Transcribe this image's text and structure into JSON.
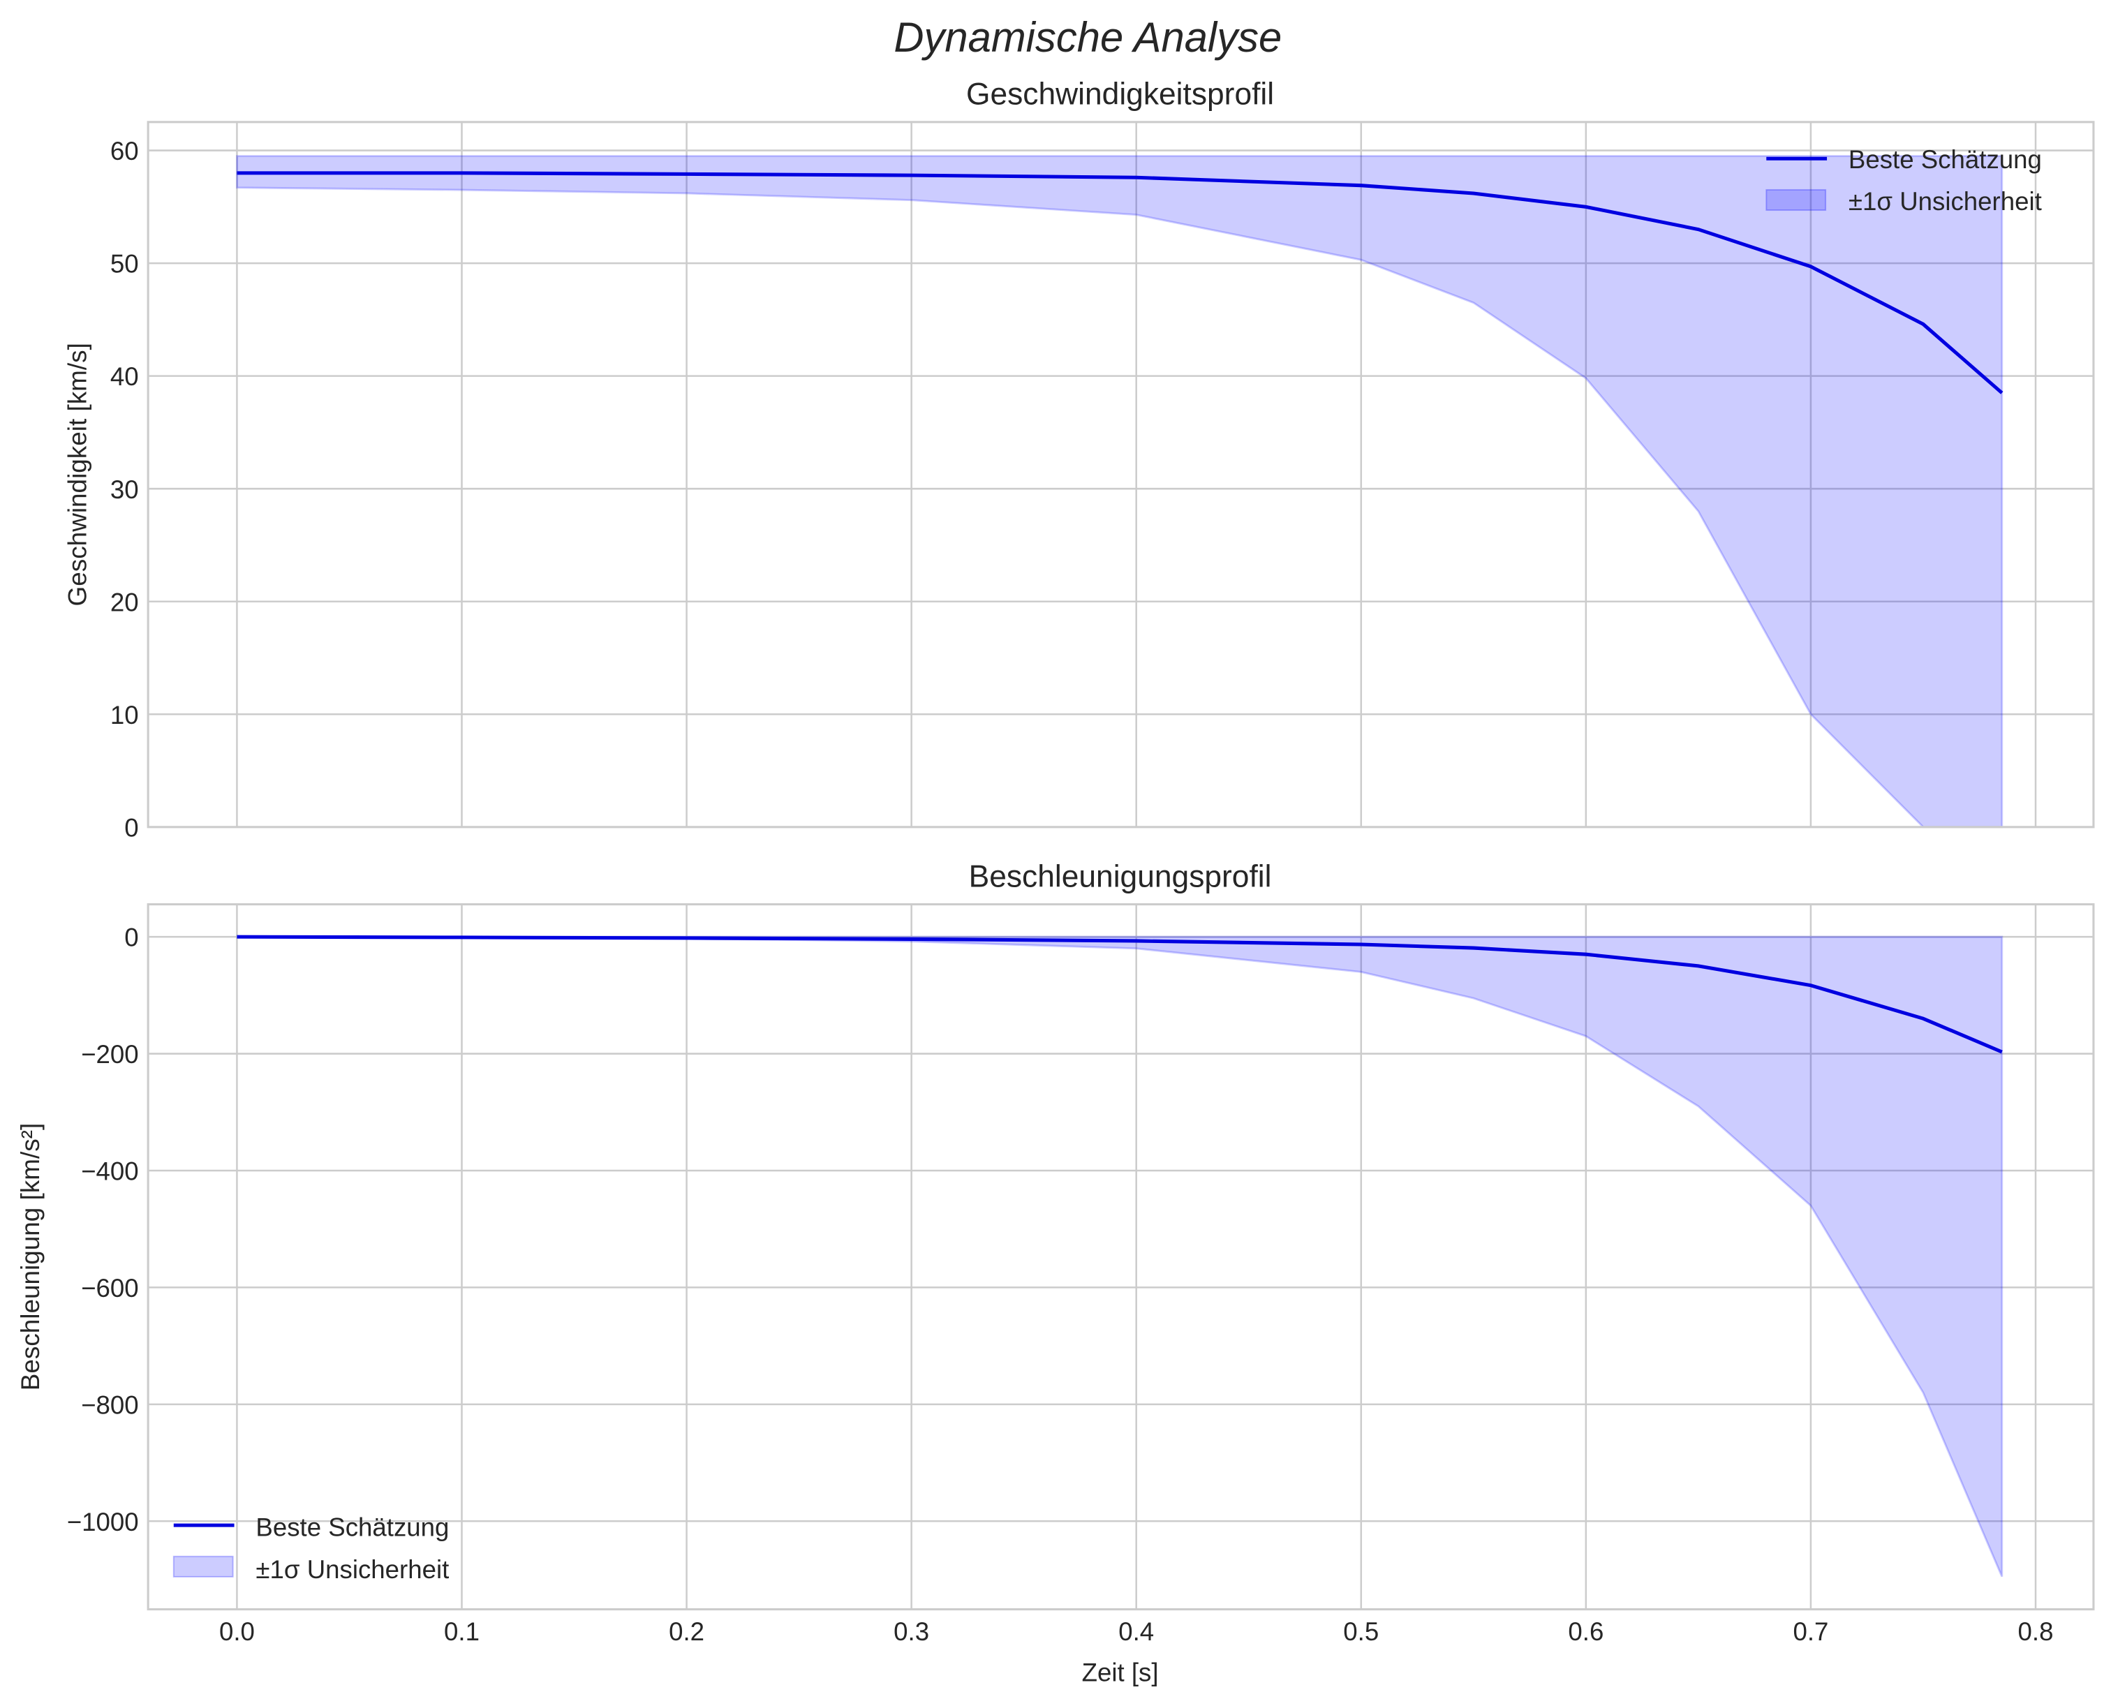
{
  "figure": {
    "suptitle": "Dynamische Analyse",
    "xlabel": "Zeit [s]",
    "xticks": [
      "0.0",
      "0.1",
      "0.2",
      "0.3",
      "0.4",
      "0.5",
      "0.6",
      "0.7",
      "0.8"
    ]
  },
  "top": {
    "title": "Geschwindigkeitsprofil",
    "ylabel": "Geschwindigkeit [km/s]",
    "yticks": [
      "0",
      "10",
      "20",
      "30",
      "40",
      "50",
      "60"
    ],
    "legend": {
      "line": "Beste Schätzung",
      "band": "±1σ Unsicherheit"
    }
  },
  "bottom": {
    "title": "Beschleunigungsprofil",
    "ylabel": "Beschleunigung [km/s²]",
    "yticks": [
      "−1000",
      "−800",
      "−600",
      "−400",
      "−200",
      "0"
    ],
    "legend": {
      "line": "Beste Schätzung",
      "band": "±1σ Unsicherheit"
    }
  },
  "colors": {
    "line": "#0000e0",
    "band": "#0000ff",
    "grid": "#cccccc"
  },
  "chart_data": [
    {
      "type": "line",
      "title": "Geschwindigkeitsprofil",
      "xlabel": "Zeit [s]",
      "ylabel": "Geschwindigkeit [km/s]",
      "xlim": [
        -0.04,
        0.83
      ],
      "ylim": [
        0,
        62.5
      ],
      "grid": true,
      "legend_position": "upper right",
      "x": [
        0.0,
        0.1,
        0.2,
        0.3,
        0.4,
        0.5,
        0.55,
        0.6,
        0.65,
        0.7,
        0.75,
        0.785
      ],
      "series": [
        {
          "name": "Beste Schätzung",
          "values": [
            58.0,
            58.0,
            57.9,
            57.8,
            57.6,
            56.9,
            56.2,
            55.0,
            53.0,
            49.7,
            44.6,
            38.5
          ]
        },
        {
          "name": "±1σ Unsicherheit (oben)",
          "values": [
            59.5,
            59.5,
            59.5,
            59.5,
            59.5,
            59.5,
            59.5,
            59.5,
            59.5,
            59.5,
            59.5,
            59.5
          ]
        },
        {
          "name": "±1σ Unsicherheit (unten)",
          "values": [
            56.7,
            56.5,
            56.2,
            55.6,
            54.3,
            50.3,
            46.5,
            39.8,
            28.0,
            10.0,
            0,
            0
          ]
        }
      ]
    },
    {
      "type": "line",
      "title": "Beschleunigungsprofil",
      "xlabel": "Zeit [s]",
      "ylabel": "Beschleunigung [km/s²]",
      "xlim": [
        -0.04,
        0.83
      ],
      "ylim": [
        -1150,
        50
      ],
      "grid": true,
      "legend_position": "lower left",
      "x": [
        0.0,
        0.1,
        0.2,
        0.3,
        0.4,
        0.5,
        0.55,
        0.6,
        0.65,
        0.7,
        0.75,
        0.785
      ],
      "series": [
        {
          "name": "Beste Schätzung",
          "values": [
            0,
            -1,
            -2,
            -4,
            -7,
            -13,
            -19,
            -30,
            -50,
            -83,
            -140,
            -197
          ]
        },
        {
          "name": "±1σ Unsicherheit (oben)",
          "values": [
            0,
            0,
            0,
            0,
            0,
            0,
            0,
            0,
            0,
            0,
            0,
            0
          ]
        },
        {
          "name": "±1σ Unsicherheit (unten)",
          "values": [
            0,
            -1,
            -3,
            -8,
            -20,
            -60,
            -105,
            -170,
            -290,
            -460,
            -780,
            -1095
          ]
        }
      ]
    }
  ]
}
